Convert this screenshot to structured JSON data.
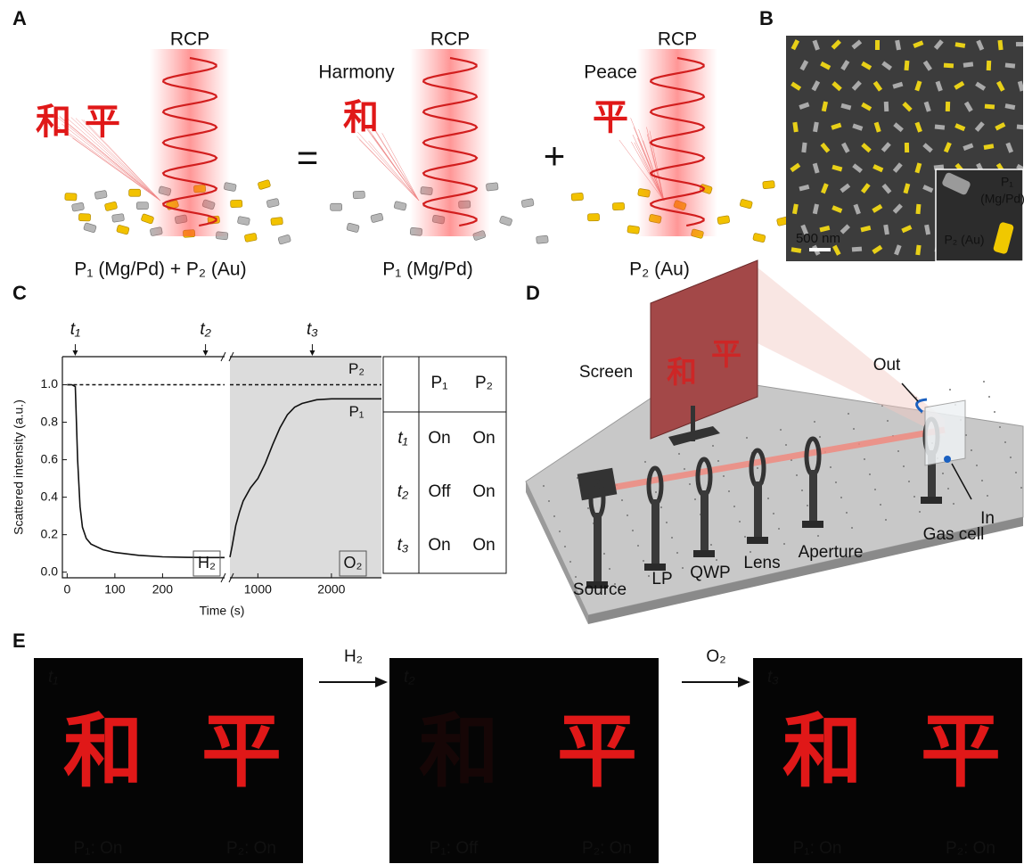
{
  "panel_labels": [
    "A",
    "B",
    "C",
    "D",
    "E"
  ],
  "panel_a": {
    "rcp": [
      "RCP",
      "RCP",
      "RCP"
    ],
    "harmony": "Harmony",
    "peace": "Peace",
    "operators": [
      "=",
      "+"
    ],
    "captions": [
      "P₁ (Mg/Pd) + P₂ (Au)",
      "P₁ (Mg/Pd)",
      "P₂ (Au)"
    ],
    "characters": [
      "和",
      "平"
    ]
  },
  "panel_b": {
    "scale_bar": "500 nm",
    "inset": [
      "P₁",
      "(Mg/Pd)",
      "P₂ (Au)"
    ]
  },
  "chart_data": {
    "type": "line",
    "xlabel": "Time (s)",
    "ylabel": "Scattered intensity (a.u.)",
    "xlim": [
      -10,
      2680
    ],
    "x_break": [
      330,
      620
    ],
    "ylim": [
      -0.03,
      1.15
    ],
    "xticks": [
      0,
      100,
      200,
      1000,
      2000
    ],
    "yticks": [
      {
        "value": 0,
        "label": "0.0"
      },
      0.2,
      0.4,
      0.6,
      0.8,
      {
        "value": 1,
        "label": "1.0"
      }
    ],
    "top_ticks": [
      {
        "value": 17,
        "label": "t₁"
      },
      {
        "value": 290,
        "label": "t₂"
      },
      {
        "value": 1740,
        "label": "t₃"
      }
    ],
    "series": [
      {
        "name": "P₁",
        "color": "#111111",
        "x": [
          0,
          10,
          17,
          22,
          27,
          32,
          40,
          50,
          75,
          100,
          150,
          200,
          250,
          300,
          330,
          475,
          620,
          650,
          700,
          750,
          800,
          900,
          1000,
          1100,
          1200,
          1300,
          1400,
          1500,
          1600,
          1800,
          2000,
          2300,
          2680
        ],
        "values": [
          1.0,
          1.0,
          0.99,
          0.6,
          0.35,
          0.24,
          0.18,
          0.15,
          0.12,
          0.105,
          0.09,
          0.082,
          0.079,
          0.078,
          0.078,
          null,
          0.08,
          0.14,
          0.25,
          0.32,
          0.38,
          0.45,
          0.5,
          0.58,
          0.68,
          0.77,
          0.84,
          0.88,
          0.9,
          0.92,
          0.925,
          0.925,
          0.925
        ]
      },
      {
        "name": "P₂",
        "color": "#111111",
        "dashed": true,
        "x": [
          0,
          330,
          475,
          620,
          2680
        ],
        "values": [
          1.0,
          1.0,
          null,
          1.0,
          1.0
        ]
      }
    ],
    "annotations": [
      {
        "text": "H₂",
        "color": "#e02020"
      },
      {
        "text": "O₂",
        "color": "#1a1ad0"
      }
    ],
    "table": {
      "header": [
        "P₁",
        "P₂"
      ],
      "rows": [
        [
          "t₁",
          "On",
          "On"
        ],
        [
          "t₂",
          "Off",
          "On"
        ],
        [
          "t₃",
          "On",
          "On"
        ]
      ]
    }
  },
  "panel_d": {
    "labels": [
      "Screen",
      "Out",
      "In",
      "Source",
      "LP",
      "QWP",
      "Lens",
      "Aperture",
      "Gas cell"
    ]
  },
  "panel_e": {
    "frames": [
      {
        "time": "t₁",
        "labels": [
          "P₁: On",
          "P₂: On"
        ]
      },
      {
        "time": "t₂",
        "labels": [
          "P₁: Off",
          "P₂: On"
        ]
      },
      {
        "time": "t₃",
        "labels": [
          "P₁: On",
          "P₂: On"
        ]
      }
    ],
    "arrows": [
      {
        "text": "H₂",
        "color": "#e02020"
      },
      {
        "text": "O₂",
        "color": "#1a1ad0"
      }
    ]
  }
}
